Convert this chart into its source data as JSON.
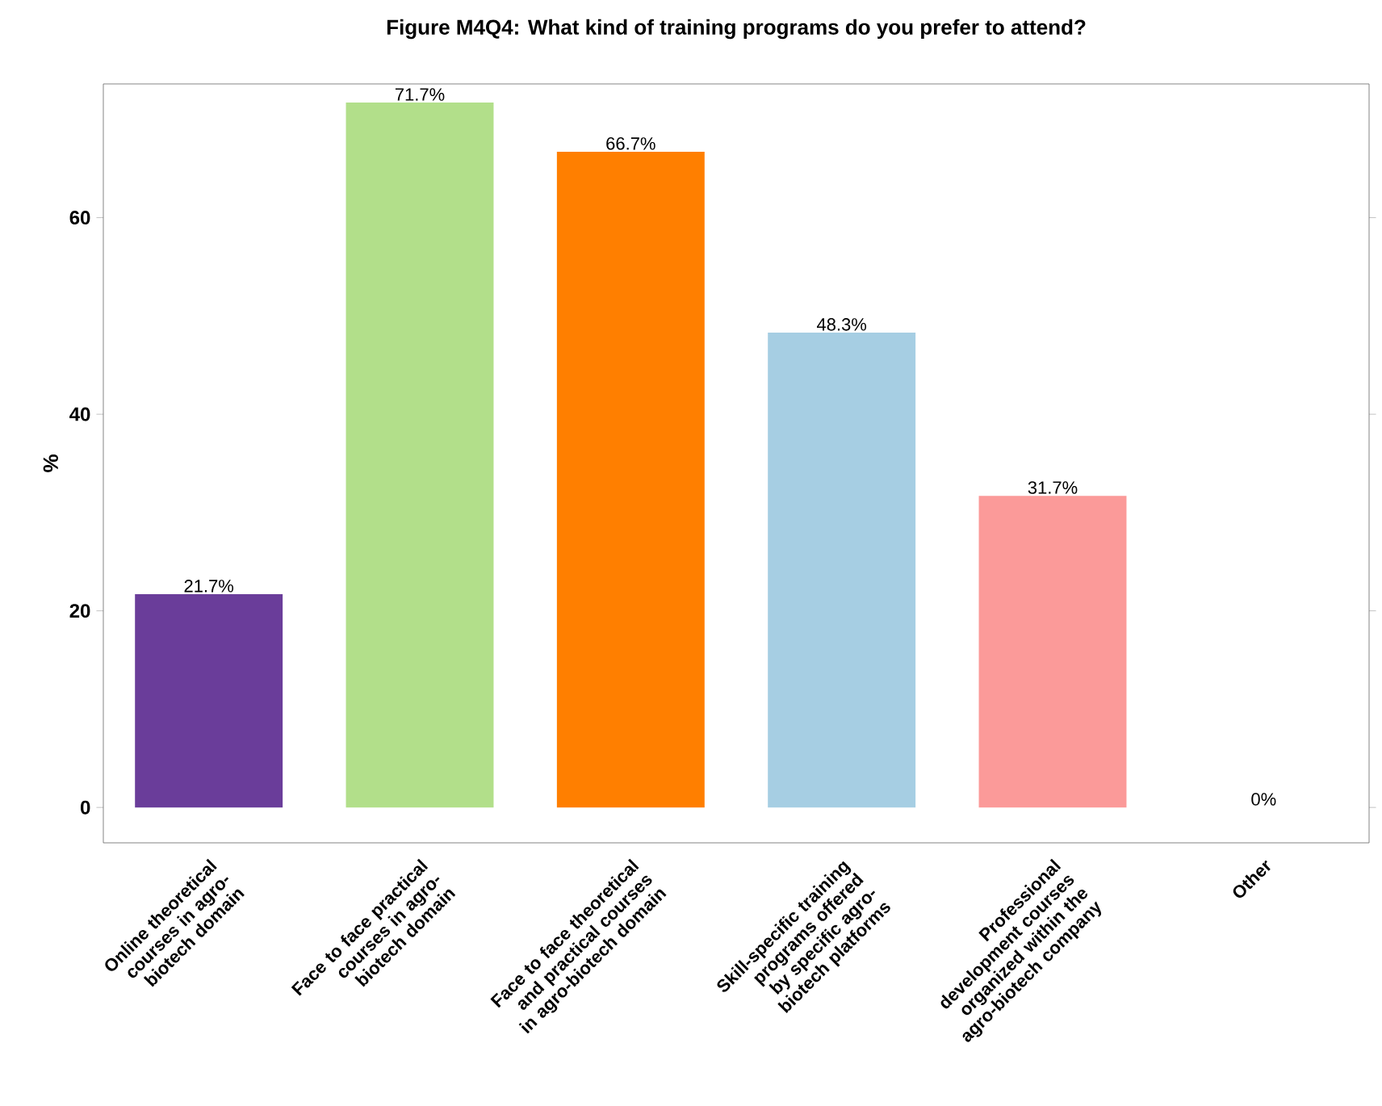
{
  "chart_data": {
    "type": "bar",
    "title": "Figure M4Q4: What kind of training programs do you prefer to attend?",
    "ylabel": "%",
    "categories": [
      "Online theoretical courses in agro-biotech domain",
      "Face to face practical courses in agro-biotech domain",
      "Face to face theoretical and practical courses in agro-biotech domain",
      "Skill-specific training programs offered by specific agro-biotech platforms",
      "Professional development courses organized within the agro-biotech company",
      "Other"
    ],
    "values": [
      21.7,
      71.7,
      66.7,
      48.3,
      31.7,
      0
    ],
    "colors": [
      "#6a3d9a",
      "#b2df8a",
      "#ff7f00",
      "#a6cee3",
      "#fb9a99",
      "#e31a1c"
    ],
    "value_labels": [
      "21.7%",
      "71.7%",
      "66.7%",
      "48.3%",
      "31.7%",
      "0%"
    ],
    "ylim": [
      -3.6,
      73.6
    ],
    "yticks": [
      0,
      20,
      40,
      60
    ],
    "grid": false
  }
}
